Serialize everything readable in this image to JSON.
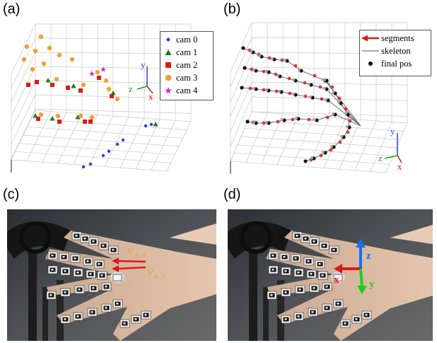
{
  "figure": {
    "panels": [
      {
        "id": "a",
        "label": "(a)"
      },
      {
        "id": "b",
        "label": "(b)"
      },
      {
        "id": "c",
        "label": "(c)"
      },
      {
        "id": "d",
        "label": "(d)"
      }
    ]
  },
  "panel_a": {
    "legend": [
      {
        "label": "cam 0",
        "marker": "circle",
        "color": "#2b3fd6"
      },
      {
        "label": "cam 1",
        "marker": "triangle",
        "color": "#1e7a1e"
      },
      {
        "label": "cam 2",
        "marker": "square",
        "color": "#e01818"
      },
      {
        "label": "cam 3",
        "marker": "hexagon",
        "color": "#f0a030"
      },
      {
        "label": "cam 4",
        "marker": "star",
        "color": "#d020d0"
      }
    ],
    "axes": {
      "x": "x",
      "y": "y",
      "z": "z"
    }
  },
  "panel_b": {
    "legend": [
      {
        "label": "segments",
        "marker": "arrow",
        "color": "#e01818"
      },
      {
        "label": "skeleton",
        "marker": "line",
        "color": "#777777"
      },
      {
        "label": "final pos",
        "marker": "dot",
        "color": "#000000"
      }
    ],
    "axes": {
      "x": "x",
      "y": "y",
      "z": "z"
    }
  },
  "panel_c": {
    "annotations": [
      {
        "main": "V",
        "sub": "m_4"
      },
      {
        "main": "V",
        "sub": "m_3"
      }
    ],
    "colors": {
      "annotation": "#f0a030",
      "arrow": "#e01818"
    }
  },
  "panel_d": {
    "axes": {
      "x": "x",
      "y": "y",
      "z": "z"
    },
    "colors": {
      "x": "#e01818",
      "y": "#22cc22",
      "z": "#1a6ff0"
    }
  }
}
